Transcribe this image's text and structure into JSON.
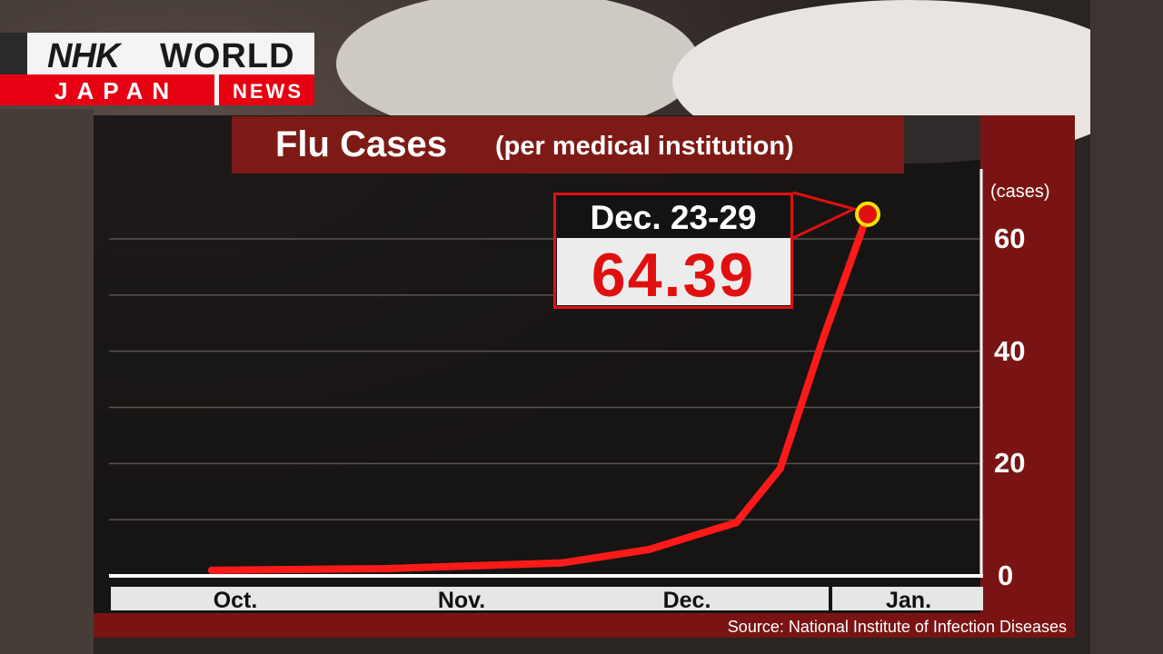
{
  "branding": {
    "nhk": "NHK",
    "world": "WORLD",
    "japan": "JAPAN",
    "news": "NEWS",
    "color_red": "#e60012"
  },
  "chart_data": {
    "type": "line",
    "title": "Flu Cases",
    "subtitle": "(per medical institution)",
    "ylabel": "(cases)",
    "ylim": [
      0,
      70
    ],
    "yticks": [
      "0",
      "20",
      "40",
      "60"
    ],
    "categories": [
      "Oct.",
      "Nov.",
      "Dec.",
      "Jan."
    ],
    "series": [
      {
        "color": "#ff1a1a",
        "points": [
          {
            "week": 1,
            "value": 1.0
          },
          {
            "week": 5,
            "value": 1.3
          },
          {
            "week": 9,
            "value": 2.3
          },
          {
            "week": 11,
            "value": 4.7
          },
          {
            "week": 13,
            "value": 9.5
          },
          {
            "week": 14,
            "value": 19.1
          },
          {
            "week": 15,
            "value": 42.7
          },
          {
            "week": 16,
            "value": 64.39
          }
        ]
      }
    ],
    "highlight": {
      "label": "Dec. 23-29",
      "value": "64.39"
    },
    "source": "Source: National Institute of Infection Diseases",
    "grid": true
  }
}
